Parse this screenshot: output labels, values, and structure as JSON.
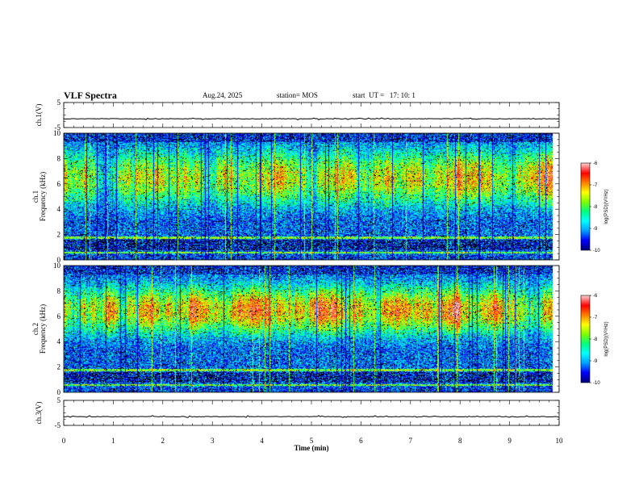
{
  "header": {
    "title": "VLF Spectra",
    "date": "Aug.24, 2025",
    "station": "station= MOS",
    "start": "start  UT =   17: 10: 1"
  },
  "colors": {
    "background": "#ffffff",
    "noData": "#000000",
    "colormap": [
      "#00007a",
      "#0000ff",
      "#00a0ff",
      "#00ffff",
      "#00ff80",
      "#80ff00",
      "#ffff00",
      "#ff8000",
      "#ff0000",
      "#ffc8c8"
    ]
  },
  "chart_data": [
    {
      "type": "line",
      "panel": "ch1-waveform",
      "ylabel": "ch.1(V)",
      "ylim": [
        -5,
        5
      ],
      "yticks": [
        "5",
        "-5"
      ],
      "xlim": [
        0,
        10
      ],
      "level": -1.5,
      "note": "flat trace near -1.5 V across full span"
    },
    {
      "type": "heatmap",
      "panel": "ch1-spectrogram",
      "ylabel": "Frequency (kHz)",
      "ylabel_prefix": "ch.1",
      "xlim": [
        0,
        10
      ],
      "ylim": [
        0,
        10
      ],
      "yticks": [
        "0",
        "2",
        "4",
        "6",
        "8",
        "10"
      ],
      "data_end_min": 9.85,
      "band_peak_khz": 6.5,
      "colorbar": {
        "label": "log(PSD)(V²/Hz)",
        "ticks": [
          "-6",
          "-7",
          "-8",
          "-9",
          "-10"
        ],
        "range": [
          -10,
          -6
        ]
      }
    },
    {
      "type": "heatmap",
      "panel": "ch2-spectrogram",
      "ylabel": "Frequency (kHz)",
      "ylabel_prefix": "ch.2",
      "xlim": [
        0,
        10
      ],
      "ylim": [
        0,
        10
      ],
      "yticks": [
        "0",
        "2",
        "4",
        "6",
        "8",
        "10"
      ],
      "data_end_min": 9.85,
      "band_peak_khz": 6.5,
      "colorbar": {
        "label": "log(PSD)(V²/Hz)",
        "ticks": [
          "-6",
          "-7",
          "-8",
          "-9",
          "-10"
        ],
        "range": [
          -10,
          -6
        ]
      }
    },
    {
      "type": "line",
      "panel": "ch3-waveform",
      "ylabel": "ch.3(V)",
      "ylim": [
        -5,
        5
      ],
      "yticks": [
        "5",
        "-5"
      ],
      "xlim": [
        0,
        10
      ],
      "level": -1.5,
      "note": "flat trace near -1.5 V across full span"
    }
  ],
  "xaxis": {
    "label": "Time  (min)",
    "ticks": [
      "0",
      "1",
      "2",
      "3",
      "4",
      "5",
      "6",
      "7",
      "8",
      "9",
      "10"
    ]
  }
}
